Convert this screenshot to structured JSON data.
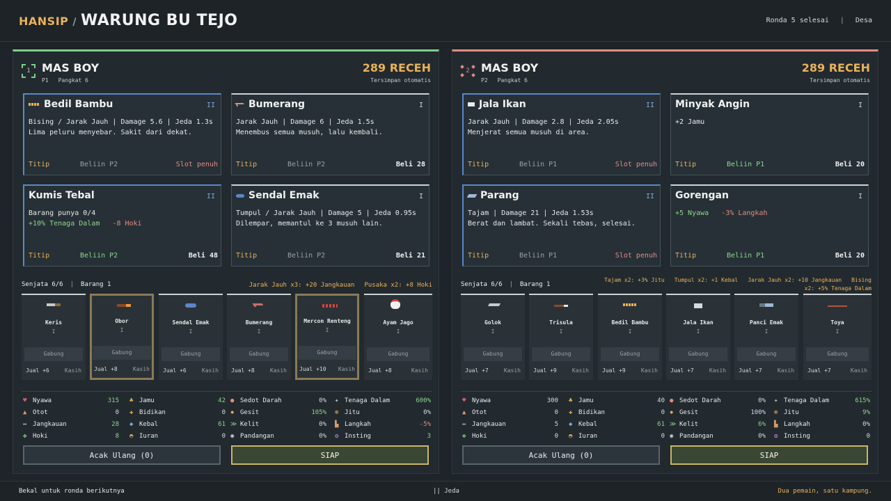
{
  "header": {
    "brand": "HANSIP",
    "separator": "/",
    "shop": "WARUNG BU TEJO",
    "round": "Ronda 5 selesai",
    "divider": "|",
    "area": "Desa"
  },
  "players": [
    {
      "badge": "1",
      "name": "MAS BOY",
      "id": "P1",
      "rank": "Pangkat 6",
      "coins": "289 RECEH",
      "save": "Tersimpan otomatis",
      "accent": "#7ecf8a",
      "cards": [
        {
          "name": "Bedil Bambu",
          "tier": "II",
          "line1": "Bising / Jarak Jauh | Damage 5.6 | Jeda 1.3s",
          "line2": "Lima peluru menyebar. Sakit dari dekat.",
          "titip": "Titip",
          "beliin": "Beliin P2",
          "status": "Slot penuh",
          "icon": "bamboo-gun-icon"
        },
        {
          "name": "Bumerang",
          "tier": "I",
          "line1": "Jarak Jauh | Damage 6 | Jeda 1.5s",
          "line2": "Menembus semua musuh, lalu kembali.",
          "titip": "Titip",
          "beliin": "Beliin P2",
          "status": "Beli 28",
          "icon": "boomerang-icon"
        },
        {
          "name": "Kumis Tebal",
          "tier": "II",
          "line1": "Barang punya 0/4",
          "line2a": "+10% Tenaga Dalam",
          "line2b": "-8 Hoki",
          "titip": "Titip",
          "beliin": "Beliin P2",
          "status": "Beli 48"
        },
        {
          "name": "Sendal Emak",
          "tier": "I",
          "line1": "Tumpul / Jarak Jauh | Damage 5 | Jeda 0.95s",
          "line2": "Dilempar, memantul ke 3 musuh lain.",
          "titip": "Titip",
          "beliin": "Beliin P2",
          "status": "Beli 21",
          "icon": "sandal-icon"
        }
      ],
      "inv_weapons": "Senjata 6/6",
      "inv_sep": "|",
      "inv_items": "Barang 1",
      "synergies": [
        "Jarak Jauh x3: +20 Jangkauan",
        "Pusaka x2: +8 Hoki"
      ],
      "slots": [
        {
          "name": "Keris",
          "tier": "I",
          "merge": "Gabung",
          "sell": "Jual +6",
          "give": "Kasih"
        },
        {
          "name": "Obor",
          "tier": "I",
          "merge": "Gabung",
          "sell": "Jual +8",
          "give": "Kasih"
        },
        {
          "name": "Sendal Emak",
          "tier": "I",
          "merge": "Gabung",
          "sell": "Jual +6",
          "give": "Kasih"
        },
        {
          "name": "Bumerang",
          "tier": "I",
          "merge": "Gabung",
          "sell": "Jual +8",
          "give": "Kasih"
        },
        {
          "name": "Mercon Renteng",
          "tier": "I",
          "merge": "Gabung",
          "sell": "Jual +10",
          "give": "Kasih"
        },
        {
          "name": "Ayam Jago",
          "tier": "I",
          "merge": "Gabung",
          "sell": "Jual +8",
          "give": "Kasih"
        }
      ],
      "stats": [
        [
          "Nyawa",
          "315"
        ],
        [
          "Jamu",
          "42"
        ],
        [
          "Sedot Darah",
          "0%"
        ],
        [
          "Tenaga Dalam",
          "600%"
        ],
        [
          "Otot",
          "0"
        ],
        [
          "Bidikan",
          "0"
        ],
        [
          "Gesit",
          "105%"
        ],
        [
          "Jitu",
          "0%"
        ],
        [
          "Jangkauan",
          "28"
        ],
        [
          "Kebal",
          "61"
        ],
        [
          "Kelit",
          "0%"
        ],
        [
          "Langkah",
          "-5%"
        ],
        [
          "Hoki",
          "8"
        ],
        [
          "Iuran",
          "0"
        ],
        [
          "Pandangan",
          "0%"
        ],
        [
          "Insting",
          "3"
        ]
      ],
      "reroll": "Acak Ulang (0)",
      "ready": "SIAP"
    },
    {
      "badge": "2",
      "name": "MAS BOY",
      "id": "P2",
      "rank": "Pangkat 6",
      "coins": "289 RECEH",
      "save": "Tersimpan otomatis",
      "accent": "#e48b84",
      "cards": [
        {
          "name": "Jala Ikan",
          "tier": "II",
          "line1": "Jarak Jauh | Damage 2.8 | Jeda 2.05s",
          "line2": "Menjerat semua musuh di area.",
          "titip": "Titip",
          "beliin": "Beliin P1",
          "status": "Slot penuh",
          "icon": "fishing-net-icon"
        },
        {
          "name": "Minyak Angin",
          "tier": "I",
          "line1g": "+2 Jamu",
          "titip": "Titip",
          "beliin": "Beliin P1",
          "status": "Beli 20"
        },
        {
          "name": "Parang",
          "tier": "II",
          "line1": "Tajam | Damage 21 | Jeda 1.53s",
          "line2": "Berat dan lambat. Sekali tebas, selesai.",
          "titip": "Titip",
          "beliin": "Beliin P1",
          "status": "Slot penuh",
          "icon": "machete-icon"
        },
        {
          "name": "Gorengan",
          "tier": "I",
          "line1a": "+5 Nyawa",
          "line1b": "-3% Langkah",
          "titip": "Titip",
          "beliin": "Beliin P1",
          "status": "Beli 20"
        }
      ],
      "inv_weapons": "Senjata 6/6",
      "inv_sep": "|",
      "inv_items": "Barang 1",
      "synergies": [
        "Tajam x2: +3% Jitu",
        "Tumpul x2: +1 Kebal",
        "Jarak Jauh x2: +10 Jangkauan",
        "Bising",
        "x2: +5% Tenaga Dalam"
      ],
      "slots": [
        {
          "name": "Golok",
          "tier": "I",
          "merge": "Gabung",
          "sell": "Jual +7",
          "give": "Kasih"
        },
        {
          "name": "Trisula",
          "tier": "I",
          "merge": "Gabung",
          "sell": "Jual +9",
          "give": "Kasih"
        },
        {
          "name": "Bedil Bambu",
          "tier": "I",
          "merge": "Gabung",
          "sell": "Jual +9",
          "give": "Kasih"
        },
        {
          "name": "Jala Ikan",
          "tier": "I",
          "merge": "Gabung",
          "sell": "Jual +7",
          "give": "Kasih"
        },
        {
          "name": "Panci Emak",
          "tier": "I",
          "merge": "Gabung",
          "sell": "Jual +7",
          "give": "Kasih"
        },
        {
          "name": "Toya",
          "tier": "I",
          "merge": "Gabung",
          "sell": "Jual +7",
          "give": "Kasih"
        }
      ],
      "stats": [
        [
          "Nyawa",
          "300"
        ],
        [
          "Jamu",
          "40"
        ],
        [
          "Sedot Darah",
          "0%"
        ],
        [
          "Tenaga Dalam",
          "615%"
        ],
        [
          "Otot",
          "0"
        ],
        [
          "Bidikan",
          "0"
        ],
        [
          "Gesit",
          "100%"
        ],
        [
          "Jitu",
          "9%"
        ],
        [
          "Jangkauan",
          "5"
        ],
        [
          "Kebal",
          "61"
        ],
        [
          "Kelit",
          "6%"
        ],
        [
          "Langkah",
          "0%"
        ],
        [
          "Hoki",
          "0"
        ],
        [
          "Iuran",
          "0"
        ],
        [
          "Pandangan",
          "0%"
        ],
        [
          "Insting",
          "0"
        ]
      ],
      "reroll": "Acak Ulang (0)",
      "ready": "SIAP"
    }
  ],
  "footer": {
    "left": "Bekal untuk ronda berikutnya",
    "center": "|| Jeda",
    "right": "Dua pemain, satu kampung."
  }
}
